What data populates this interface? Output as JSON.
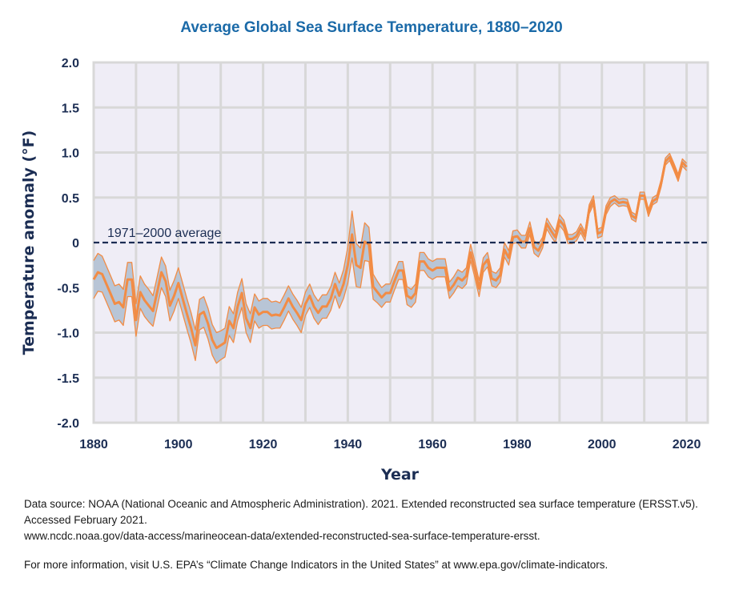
{
  "chart_data": {
    "type": "line",
    "title": "Average Global Sea Surface Temperature, 1880–2020",
    "xlabel": "Year",
    "ylabel": "Temperature anomaly (°F)",
    "xlim": [
      1880,
      2025
    ],
    "ylim": [
      -2.0,
      2.0
    ],
    "x_ticks": [
      1880,
      1900,
      1920,
      1940,
      1960,
      1980,
      2000,
      2020
    ],
    "x_tick_labels": [
      "1880",
      "1900",
      "1920",
      "1940",
      "1960",
      "1980",
      "2000",
      "2020"
    ],
    "y_ticks": [
      2.0,
      1.5,
      1.0,
      0.5,
      0,
      -0.5,
      -1.0,
      -1.5,
      -2.0
    ],
    "y_tick_labels": [
      "2.0",
      "1.5",
      "1.0",
      "0.5",
      "0",
      "-0.5",
      "-1.0",
      "-1.5",
      "-2.0"
    ],
    "grid": true,
    "x_grid_step": 10,
    "reference_line": {
      "value": 0,
      "label": "1971–2000 average",
      "style": "dashed"
    },
    "colors": {
      "line": "#f28c45",
      "band": "#b8c5d6",
      "plot_bg": "#efedf6",
      "grid": "#d8d8d8",
      "axis_text": "#1b2d53",
      "title": "#1b6aa8"
    },
    "series": [
      {
        "name": "Annual anomaly",
        "start_year": 1880,
        "values": [
          -0.41,
          -0.33,
          -0.35,
          -0.46,
          -0.57,
          -0.68,
          -0.66,
          -0.72,
          -0.41,
          -0.41,
          -0.86,
          -0.55,
          -0.64,
          -0.7,
          -0.76,
          -0.55,
          -0.33,
          -0.43,
          -0.7,
          -0.59,
          -0.45,
          -0.62,
          -0.79,
          -0.95,
          -1.14,
          -0.8,
          -0.77,
          -0.9,
          -1.08,
          -1.17,
          -1.14,
          -1.11,
          -0.87,
          -0.95,
          -0.71,
          -0.56,
          -0.84,
          -0.95,
          -0.72,
          -0.8,
          -0.77,
          -0.77,
          -0.81,
          -0.8,
          -0.81,
          -0.72,
          -0.62,
          -0.71,
          -0.78,
          -0.86,
          -0.68,
          -0.59,
          -0.71,
          -0.78,
          -0.71,
          -0.71,
          -0.62,
          -0.46,
          -0.59,
          -0.46,
          -0.25,
          0.09,
          -0.25,
          -0.28,
          0.01,
          -0.02,
          -0.49,
          -0.55,
          -0.61,
          -0.56,
          -0.56,
          -0.43,
          -0.31,
          -0.31,
          -0.59,
          -0.62,
          -0.56,
          -0.21,
          -0.21,
          -0.28,
          -0.31,
          -0.28,
          -0.28,
          -0.28,
          -0.53,
          -0.47,
          -0.39,
          -0.42,
          -0.37,
          -0.11,
          -0.3,
          -0.51,
          -0.25,
          -0.19,
          -0.4,
          -0.42,
          -0.36,
          -0.08,
          -0.17,
          0.06,
          0.07,
          0.01,
          0.01,
          0.16,
          -0.05,
          -0.09,
          0.0,
          0.21,
          0.13,
          0.06,
          0.25,
          0.19,
          0.04,
          0.04,
          0.07,
          0.16,
          0.07,
          0.37,
          0.47,
          0.1,
          0.12,
          0.36,
          0.45,
          0.48,
          0.44,
          0.45,
          0.44,
          0.3,
          0.27,
          0.52,
          0.52,
          0.33,
          0.46,
          0.49,
          0.66,
          0.9,
          0.95,
          0.84,
          0.72,
          0.89,
          0.84
        ]
      },
      {
        "name": "Uncertainty range (±)",
        "start_year": 1880,
        "half_width": [
          0.21,
          0.21,
          0.2,
          0.2,
          0.2,
          0.2,
          0.2,
          0.2,
          0.19,
          0.19,
          0.18,
          0.18,
          0.18,
          0.18,
          0.17,
          0.17,
          0.17,
          0.17,
          0.17,
          0.17,
          0.17,
          0.17,
          0.17,
          0.17,
          0.17,
          0.17,
          0.17,
          0.17,
          0.17,
          0.17,
          0.16,
          0.16,
          0.16,
          0.16,
          0.16,
          0.16,
          0.16,
          0.16,
          0.15,
          0.15,
          0.15,
          0.15,
          0.15,
          0.15,
          0.14,
          0.14,
          0.14,
          0.14,
          0.14,
          0.14,
          0.13,
          0.13,
          0.13,
          0.13,
          0.13,
          0.13,
          0.13,
          0.13,
          0.14,
          0.16,
          0.2,
          0.26,
          0.24,
          0.22,
          0.21,
          0.19,
          0.14,
          0.12,
          0.11,
          0.1,
          0.1,
          0.1,
          0.1,
          0.1,
          0.1,
          0.1,
          0.1,
          0.1,
          0.1,
          0.1,
          0.1,
          0.1,
          0.1,
          0.1,
          0.09,
          0.09,
          0.09,
          0.09,
          0.09,
          0.09,
          0.09,
          0.09,
          0.08,
          0.08,
          0.08,
          0.08,
          0.08,
          0.08,
          0.08,
          0.07,
          0.07,
          0.07,
          0.07,
          0.07,
          0.07,
          0.07,
          0.06,
          0.06,
          0.06,
          0.06,
          0.06,
          0.06,
          0.05,
          0.05,
          0.05,
          0.05,
          0.05,
          0.05,
          0.05,
          0.05,
          0.05,
          0.05,
          0.05,
          0.04,
          0.04,
          0.04,
          0.04,
          0.04,
          0.04,
          0.04,
          0.04,
          0.04,
          0.04,
          0.04,
          0.04,
          0.04,
          0.04,
          0.04,
          0.04,
          0.04,
          0.04
        ]
      }
    ]
  },
  "footer": {
    "source_line1": "Data source: NOAA (National Oceanic and Atmospheric Administration). 2021. Extended reconstructed sea surface temperature (ERSST.v5). Accessed February 2021.",
    "source_line2": "www.ncdc.noaa.gov/data-access/marineocean-data/extended-reconstructed-sea-surface-temperature-ersst.",
    "more_info": "For more information, visit U.S. EPA’s “Climate Change Indicators in the United States” at www.epa.gov/climate-indicators."
  }
}
